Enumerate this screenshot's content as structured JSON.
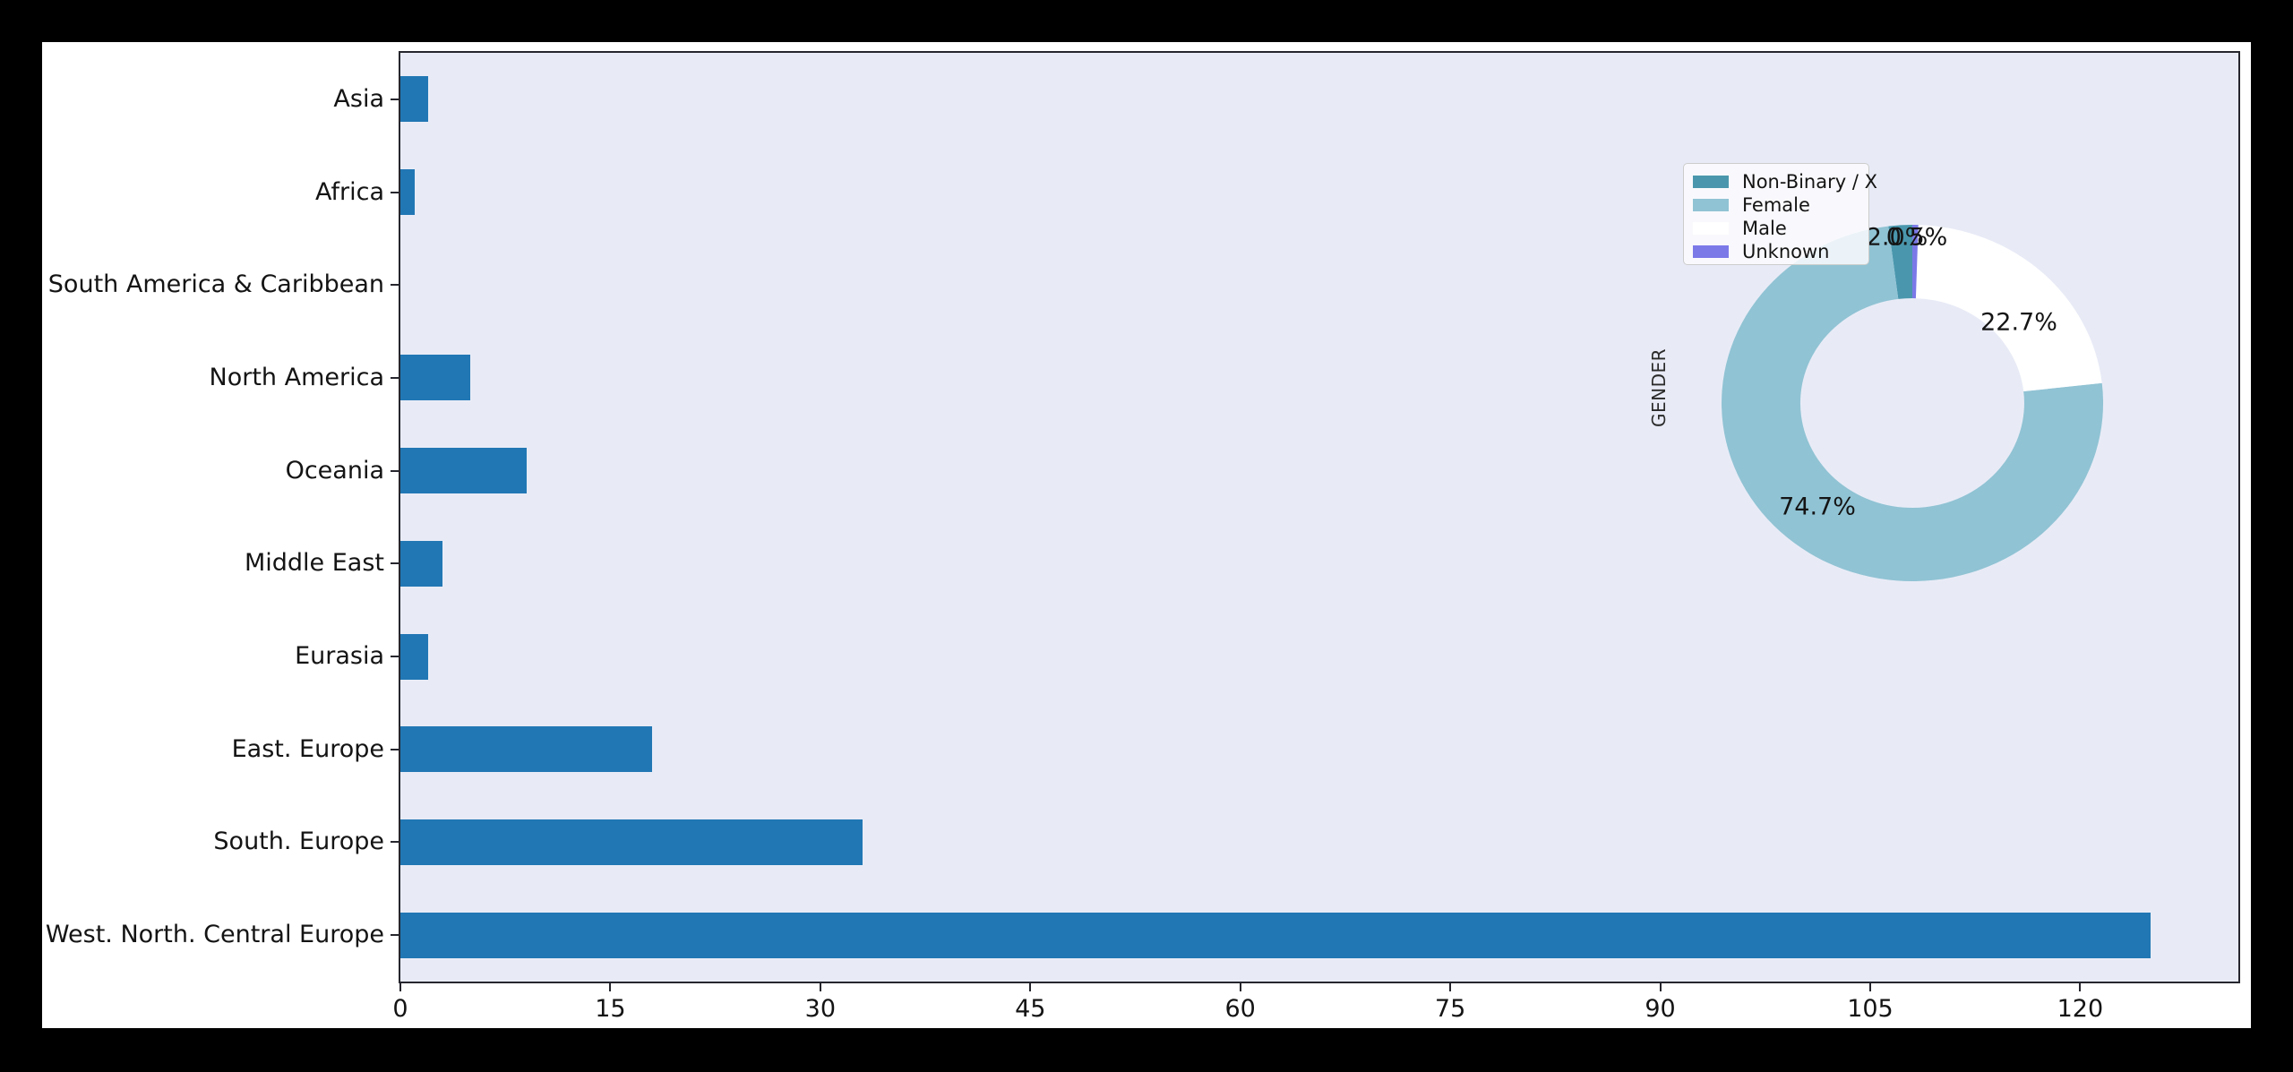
{
  "figure": {
    "page_background": "#000000",
    "canvas_background": "#ffffff",
    "axes_background": "#e8ebf6",
    "spine_color": "#26262e",
    "text_color": "#141414"
  },
  "chart_data": [
    {
      "type": "bar",
      "orientation": "horizontal",
      "title": "",
      "xlabel": "",
      "ylabel": "",
      "categories": [
        "Asia",
        "Africa",
        "South America & Caribbean",
        "North America",
        "Oceania",
        "Middle East",
        "Eurasia",
        "East. Europe",
        "South. Europe",
        "West. North. Central Europe"
      ],
      "values": [
        2,
        1,
        0,
        5,
        9,
        3,
        2,
        18,
        33,
        125
      ],
      "bar_color": "#2177b4",
      "xticks": [
        0,
        15,
        30,
        45,
        60,
        75,
        90,
        105,
        120
      ],
      "xlim": [
        0,
        131.3
      ],
      "grid": false,
      "legend_position": "none"
    },
    {
      "type": "pie",
      "donut": true,
      "ylabel": "GENDER",
      "start_angle": 90,
      "counterclockwise": true,
      "slices": [
        {
          "label": "Non-Binary / X",
          "pct": 2.0,
          "pct_text": "2.0%",
          "color": "#4a97ad"
        },
        {
          "label": "Female",
          "pct": 74.7,
          "pct_text": "74.7%",
          "color": "#90c3d4"
        },
        {
          "label": "Male",
          "pct": 22.7,
          "pct_text": "22.7%",
          "color": "#ffffff"
        },
        {
          "label": "Unknown",
          "pct": 0.5,
          "pct_text": "0.5%",
          "color": "#7b79e8"
        }
      ],
      "legend": {
        "position": "upper-left",
        "entries": [
          "Non-Binary / X",
          "Female",
          "Male",
          "Unknown"
        ]
      }
    }
  ]
}
